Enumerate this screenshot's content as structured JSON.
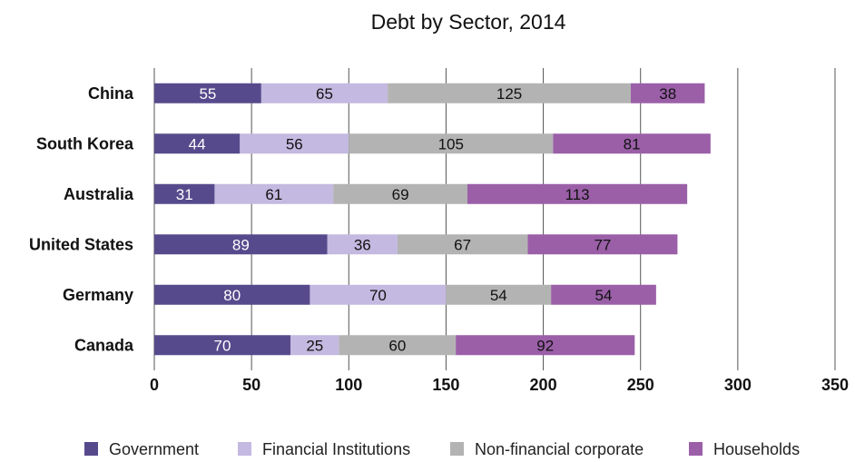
{
  "chart_data": {
    "type": "bar",
    "orientation": "horizontal",
    "stacked": true,
    "title": "Debt by Sector, 2014",
    "xlabel": "",
    "ylabel": "",
    "xlim": [
      0,
      350
    ],
    "xticks": [
      "0",
      "50",
      "100",
      "150",
      "200",
      "250",
      "300",
      "350"
    ],
    "grid": "vertical",
    "legend_position": "bottom",
    "categories": [
      "China",
      "South Korea",
      "Australia",
      "United States",
      "Germany",
      "Canada"
    ],
    "series": [
      {
        "name": "Government",
        "color": "#574a8c",
        "label_color": "#ffffff",
        "values": [
          55,
          44,
          31,
          89,
          80,
          70
        ]
      },
      {
        "name": "Financial Institutions",
        "color": "#c4b9e0",
        "label_color": "#111111",
        "values": [
          65,
          56,
          61,
          36,
          70,
          25
        ]
      },
      {
        "name": "Non-financial corporate",
        "color": "#b3b3b3",
        "label_color": "#111111",
        "values": [
          125,
          105,
          69,
          67,
          54,
          60
        ]
      },
      {
        "name": "Households",
        "color": "#9b5fa8",
        "label_color": "#111111",
        "values": [
          38,
          81,
          113,
          77,
          54,
          92
        ]
      }
    ]
  }
}
